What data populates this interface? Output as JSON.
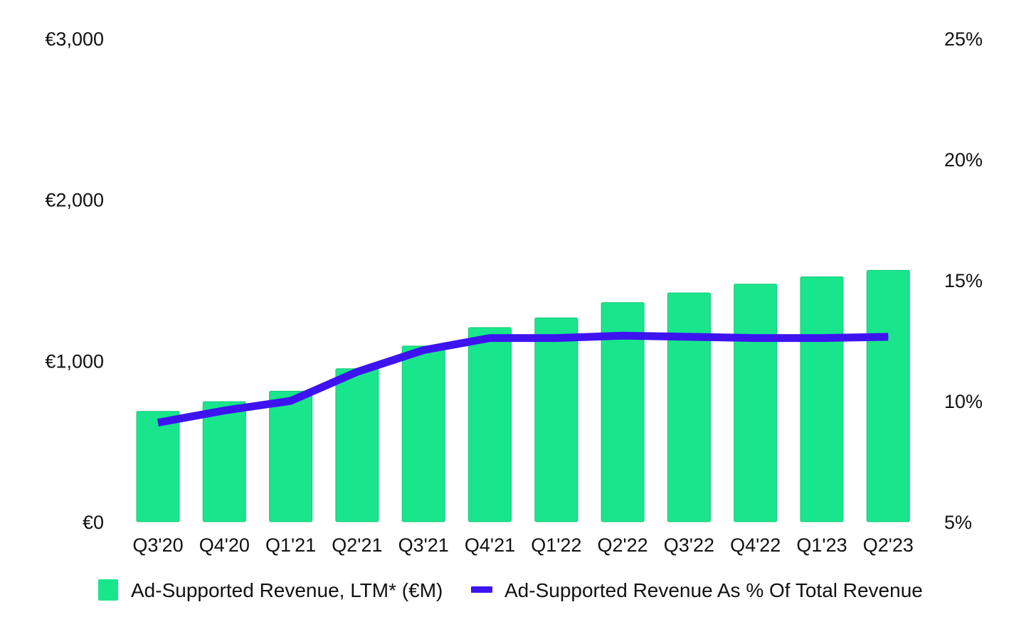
{
  "chart_data": {
    "type": "bar",
    "title": "",
    "xlabel": "",
    "ylabel": "",
    "categories": [
      "Q3'20",
      "Q4'20",
      "Q1'21",
      "Q2'21",
      "Q3'21",
      "Q4'21",
      "Q1'22",
      "Q2'22",
      "Q3'22",
      "Q4'22",
      "Q1'23",
      "Q2'23"
    ],
    "series": [
      {
        "name": "Ad-Supported Revenue, LTM* (€M)",
        "type": "bar",
        "axis": "left",
        "color": "#19E68C",
        "values": [
          685,
          745,
          810,
          950,
          1090,
          1205,
          1265,
          1360,
          1420,
          1475,
          1520,
          1560
        ]
      },
      {
        "name": "Ad-Supported Revenue As % Of Total Revenue",
        "type": "line",
        "axis": "right",
        "color": "#3D14F0",
        "values": [
          9.1,
          9.6,
          10.0,
          11.2,
          12.1,
          12.6,
          12.6,
          12.7,
          12.65,
          12.6,
          12.6,
          12.65
        ]
      }
    ],
    "y_left": {
      "ylim": [
        0,
        3000
      ],
      "ticks": [
        0,
        1000,
        2000,
        3000
      ],
      "tick_labels": [
        "€0",
        "€1,000",
        "€2,000",
        "€3,000"
      ]
    },
    "y_right": {
      "ylim": [
        5,
        25
      ],
      "ticks": [
        5,
        10,
        15,
        20,
        25
      ],
      "tick_labels": [
        "5%",
        "10%",
        "15%",
        "20%",
        "25%"
      ]
    },
    "grid": false,
    "legend": {
      "position": "bottom",
      "entries": [
        "Ad-Supported Revenue, LTM* (€M)",
        "Ad-Supported Revenue As % Of Total Revenue"
      ]
    }
  }
}
